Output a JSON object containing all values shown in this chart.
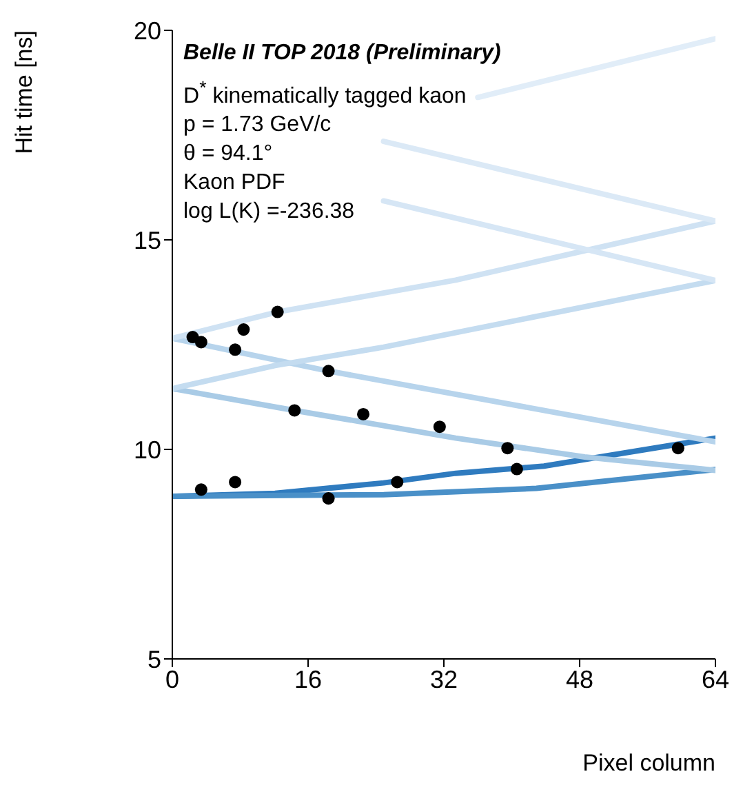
{
  "chart_data": {
    "type": "scatter",
    "title": "Belle II TOP 2018 (Preliminary)",
    "annotations": [
      "D$^{*}$ kinematically tagged kaon",
      "p = 1.73 GeV/c",
      "θ = 94.1°",
      "Kaon PDF",
      "log L(K) =-236.38"
    ],
    "xlabel": "Pixel column",
    "ylabel": "Hit time [ns]",
    "xlim": [
      0,
      64
    ],
    "xticks": [
      0,
      16,
      32,
      48,
      64
    ],
    "ylim": [
      5,
      20
    ],
    "yticks": [
      5,
      10,
      15,
      20
    ],
    "series": [
      {
        "type": "line",
        "marker": "none",
        "color": "#2f7bbf",
        "x": [
          0,
          12.1,
          24.9,
          33.4,
          43.8,
          64
        ],
        "values": [
          8.88,
          8.95,
          9.2,
          9.43,
          9.6,
          10.27
        ]
      },
      {
        "type": "line",
        "marker": "none",
        "color": "#4a90c8",
        "x": [
          0,
          24.9,
          42.9,
          64
        ],
        "values": [
          8.88,
          8.92,
          9.07,
          9.52
        ]
      },
      {
        "type": "line",
        "marker": "none",
        "color": "#a9cbe6",
        "x": [
          0,
          14.4,
          33.4,
          48.6,
          64
        ],
        "values": [
          11.45,
          10.93,
          10.27,
          9.82,
          9.5
        ]
      },
      {
        "type": "line",
        "marker": "none",
        "color": "#b7d4ec",
        "x": [
          0,
          18.4,
          24.9,
          64
        ],
        "values": [
          12.65,
          11.87,
          11.63,
          10.18
        ]
      },
      {
        "type": "line",
        "marker": "none",
        "color": "#c4dcf0",
        "x": [
          0,
          12.1,
          24.9,
          64
        ],
        "values": [
          11.45,
          12.0,
          12.44,
          14.03
        ]
      },
      {
        "type": "line",
        "marker": "none",
        "color": "#cfe2f3",
        "x": [
          0,
          12.4,
          33.4,
          64
        ],
        "values": [
          12.65,
          13.28,
          14.04,
          15.45
        ]
      },
      {
        "type": "line",
        "marker": "none",
        "color": "#d6e6f5",
        "x": [
          24.9,
          64
        ],
        "values": [
          15.93,
          14.03
        ]
      },
      {
        "type": "line",
        "marker": "none",
        "color": "#dbe9f6",
        "x": [
          24.9,
          64
        ],
        "values": [
          17.35,
          15.45
        ]
      },
      {
        "type": "line",
        "marker": "none",
        "color": "#e1edf8",
        "x": [
          36,
          64
        ],
        "values": [
          18.4,
          19.8
        ]
      },
      {
        "marker": "circle",
        "color": "#000000",
        "x": [
          2.4,
          3.4,
          7.4,
          8.4,
          12.4,
          18.4,
          14.4,
          22.5,
          31.5,
          3.4,
          7.4,
          18.4,
          26.5,
          39.5,
          40.6,
          59.6
        ],
        "values": [
          12.68,
          12.56,
          12.38,
          12.86,
          13.28,
          11.87,
          10.93,
          10.84,
          10.54,
          9.04,
          9.22,
          8.83,
          9.22,
          10.03,
          9.53,
          10.03
        ]
      }
    ]
  }
}
